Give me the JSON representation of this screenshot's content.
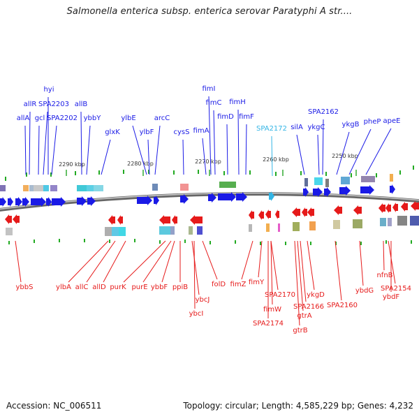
{
  "title": "Salmonella enterica subsp. enterica serovar Paratyphi A str....",
  "accession": "Accession: NC_006511",
  "topology": "Topology: circular; Length: 4,585,229 bp; Genes: 4,232",
  "colors": {
    "forward": "#1a1ae6",
    "reverse": "#e61a1a",
    "highlight": "#33b5e5",
    "backbone": "#777777",
    "ticks": "#22aa22",
    "kbp": "#333333"
  },
  "kbp_labels": [
    "2290 kbp",
    "2280 kbp",
    "2270 kbp",
    "2260 kbp",
    "2250 kbp"
  ],
  "forward_labels": [
    "hyi",
    "allR",
    "SPA2203",
    "allB",
    "allA",
    "gcl",
    "SPA2202",
    "ybbY",
    "glxK",
    "ylbE",
    "ylbF",
    "arcC",
    "cysS",
    "fimI",
    "fimC",
    "fimH",
    "fimD",
    "fimF",
    "fimA",
    "SPA2172",
    "silA",
    "SPA2162",
    "ykgC",
    "ykgB",
    "pheP",
    "apeE"
  ],
  "reverse_labels": [
    "ybbS",
    "ylbA",
    "allC",
    "allD",
    "purK",
    "purE",
    "ybbF",
    "ppiB",
    "ybcJ",
    "ybcI",
    "folD",
    "fimZ",
    "fimY",
    "SPA2170",
    "fimW",
    "SPA2174",
    "ykgD",
    "SPA2166",
    "gtrA",
    "gtrB",
    "SPA2160",
    "ybdG",
    "nfnB",
    "SPA2154",
    "ybdF"
  ]
}
